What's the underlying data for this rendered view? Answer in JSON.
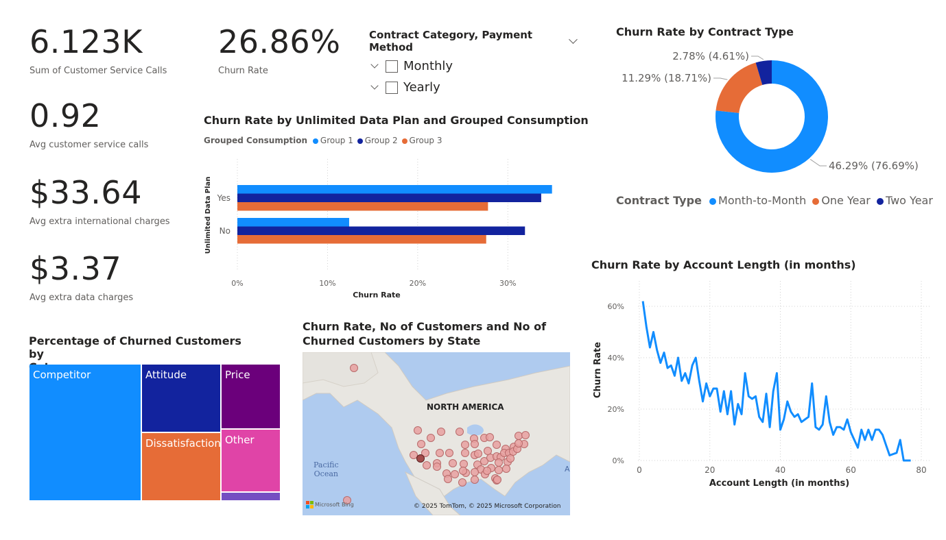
{
  "kpis": [
    {
      "value": "6.123K",
      "label": "Sum of Customer Service Calls"
    },
    {
      "value": "26.86%",
      "label": "Churn Rate"
    },
    {
      "value": "0.92",
      "label": "Avg customer service calls"
    },
    {
      "value": "$33.64",
      "label": "Avg extra international charges"
    },
    {
      "value": "$3.37",
      "label": "Avg extra data charges"
    }
  ],
  "slicer": {
    "title": "Contract Category, Payment Method",
    "items": [
      "Monthly",
      "Yearly"
    ]
  },
  "colors": {
    "blue": "#118DFF",
    "navy": "#12239E",
    "orange": "#E66C37",
    "purple": "#6B007B",
    "pink": "#E044A7",
    "violet": "#744EC2",
    "map_land": "#E8E6E1",
    "map_water": "#AFCBEF",
    "map_dot": "#E8A0A0"
  },
  "donut": {
    "title": "Churn Rate by Contract Type",
    "legend_title": "Contract Type",
    "chart_data": {
      "type": "pie",
      "title": "Churn Rate by Contract Type",
      "categories": [
        "Month-to-Month",
        "One Year",
        "Two Year"
      ],
      "values": [
        46.29,
        11.29,
        2.78
      ],
      "labels": [
        "46.29% (76.69%)",
        "11.29% (18.71%)",
        "2.78% (4.61%)"
      ],
      "legend_position": "bottom"
    }
  },
  "bar": {
    "title": "Churn Rate by Unlimited Data Plan and Grouped Consumption",
    "legend_title": "Grouped Consumption",
    "chart_data": {
      "type": "bar",
      "orientation": "horizontal",
      "title": "Churn Rate by Unlimited Data Plan and Grouped Consumption",
      "categories": [
        "Yes",
        "No"
      ],
      "series": [
        {
          "name": "Group 1",
          "values": [
            34.9,
            12.4
          ]
        },
        {
          "name": "Group 2",
          "values": [
            33.7,
            31.9
          ]
        },
        {
          "name": "Group 3",
          "values": [
            27.8,
            27.6
          ]
        }
      ],
      "xlabel": "Churn Rate",
      "ylabel": "Unlimited Data Plan",
      "xlim": [
        0,
        35
      ],
      "ticks": [
        "0%",
        "10%",
        "20%",
        "30%"
      ],
      "tick_values": [
        0,
        10,
        20,
        30
      ],
      "grid": true,
      "legend_position": "top-left"
    }
  },
  "treemap": {
    "title_line1": "Percentage of Churned Customers by",
    "title_line2": "Category",
    "cells": [
      {
        "label": "Competitor"
      },
      {
        "label": "Attitude"
      },
      {
        "label": "Price"
      },
      {
        "label": "Dissatisfaction"
      },
      {
        "label": "Other"
      },
      {
        "label": ""
      }
    ]
  },
  "map": {
    "title_line1": "Churn Rate, No of Customers and No of",
    "title_line2": "Churned Customers by State",
    "continent_label": "NORTH AMERICA",
    "ocean_line1": "Pacific",
    "ocean_line2": "Ocean",
    "bing_label": "Microsoft Bing",
    "copyright": "© 2025 TomTom, © 2025 Microsoft Corporation",
    "edge_letter": "A"
  },
  "line": {
    "title": "Churn Rate by Account Length (in months)",
    "chart_data": {
      "type": "line",
      "title": "Churn Rate by Account Length (in months)",
      "xlabel": "Account Length (in months)",
      "ylabel": "Churn Rate",
      "xlim": [
        0,
        80
      ],
      "ylim": [
        0,
        60
      ],
      "x_ticks": [
        0,
        20,
        40,
        60,
        80
      ],
      "y_ticks": [
        "0%",
        "20%",
        "40%",
        "60%"
      ],
      "y_tick_values": [
        0,
        20,
        40,
        60
      ],
      "grid": true,
      "x": [
        1,
        2,
        3,
        4,
        5,
        6,
        7,
        8,
        9,
        10,
        11,
        12,
        13,
        14,
        15,
        16,
        17,
        18,
        19,
        20,
        21,
        22,
        23,
        24,
        25,
        26,
        27,
        28,
        29,
        30,
        31,
        32,
        33,
        34,
        35,
        36,
        37,
        38,
        39,
        40,
        41,
        42,
        43,
        44,
        45,
        46,
        47,
        48,
        49,
        50,
        51,
        52,
        53,
        54,
        55,
        56,
        57,
        58,
        59,
        60,
        61,
        62,
        63,
        64,
        65,
        66,
        67,
        68,
        69,
        70,
        71,
        72,
        73,
        74,
        75,
        76,
        77
      ],
      "y": [
        62,
        52,
        44,
        50,
        43,
        38,
        42,
        36,
        37,
        33,
        40,
        31,
        34,
        30,
        37,
        40,
        31,
        23,
        30,
        25,
        28,
        28,
        19,
        27,
        18,
        27,
        14,
        22,
        18,
        34,
        25,
        24,
        25,
        17,
        15,
        26,
        13,
        27,
        34,
        12,
        16,
        23,
        19,
        17,
        18,
        15,
        16,
        17,
        30,
        13,
        12,
        14,
        25,
        15,
        10,
        13,
        13,
        12,
        16,
        11,
        8,
        5,
        12,
        8,
        12,
        8,
        12,
        12,
        10,
        6,
        2,
        2.5,
        3,
        8,
        0,
        0,
        0
      ]
    }
  }
}
